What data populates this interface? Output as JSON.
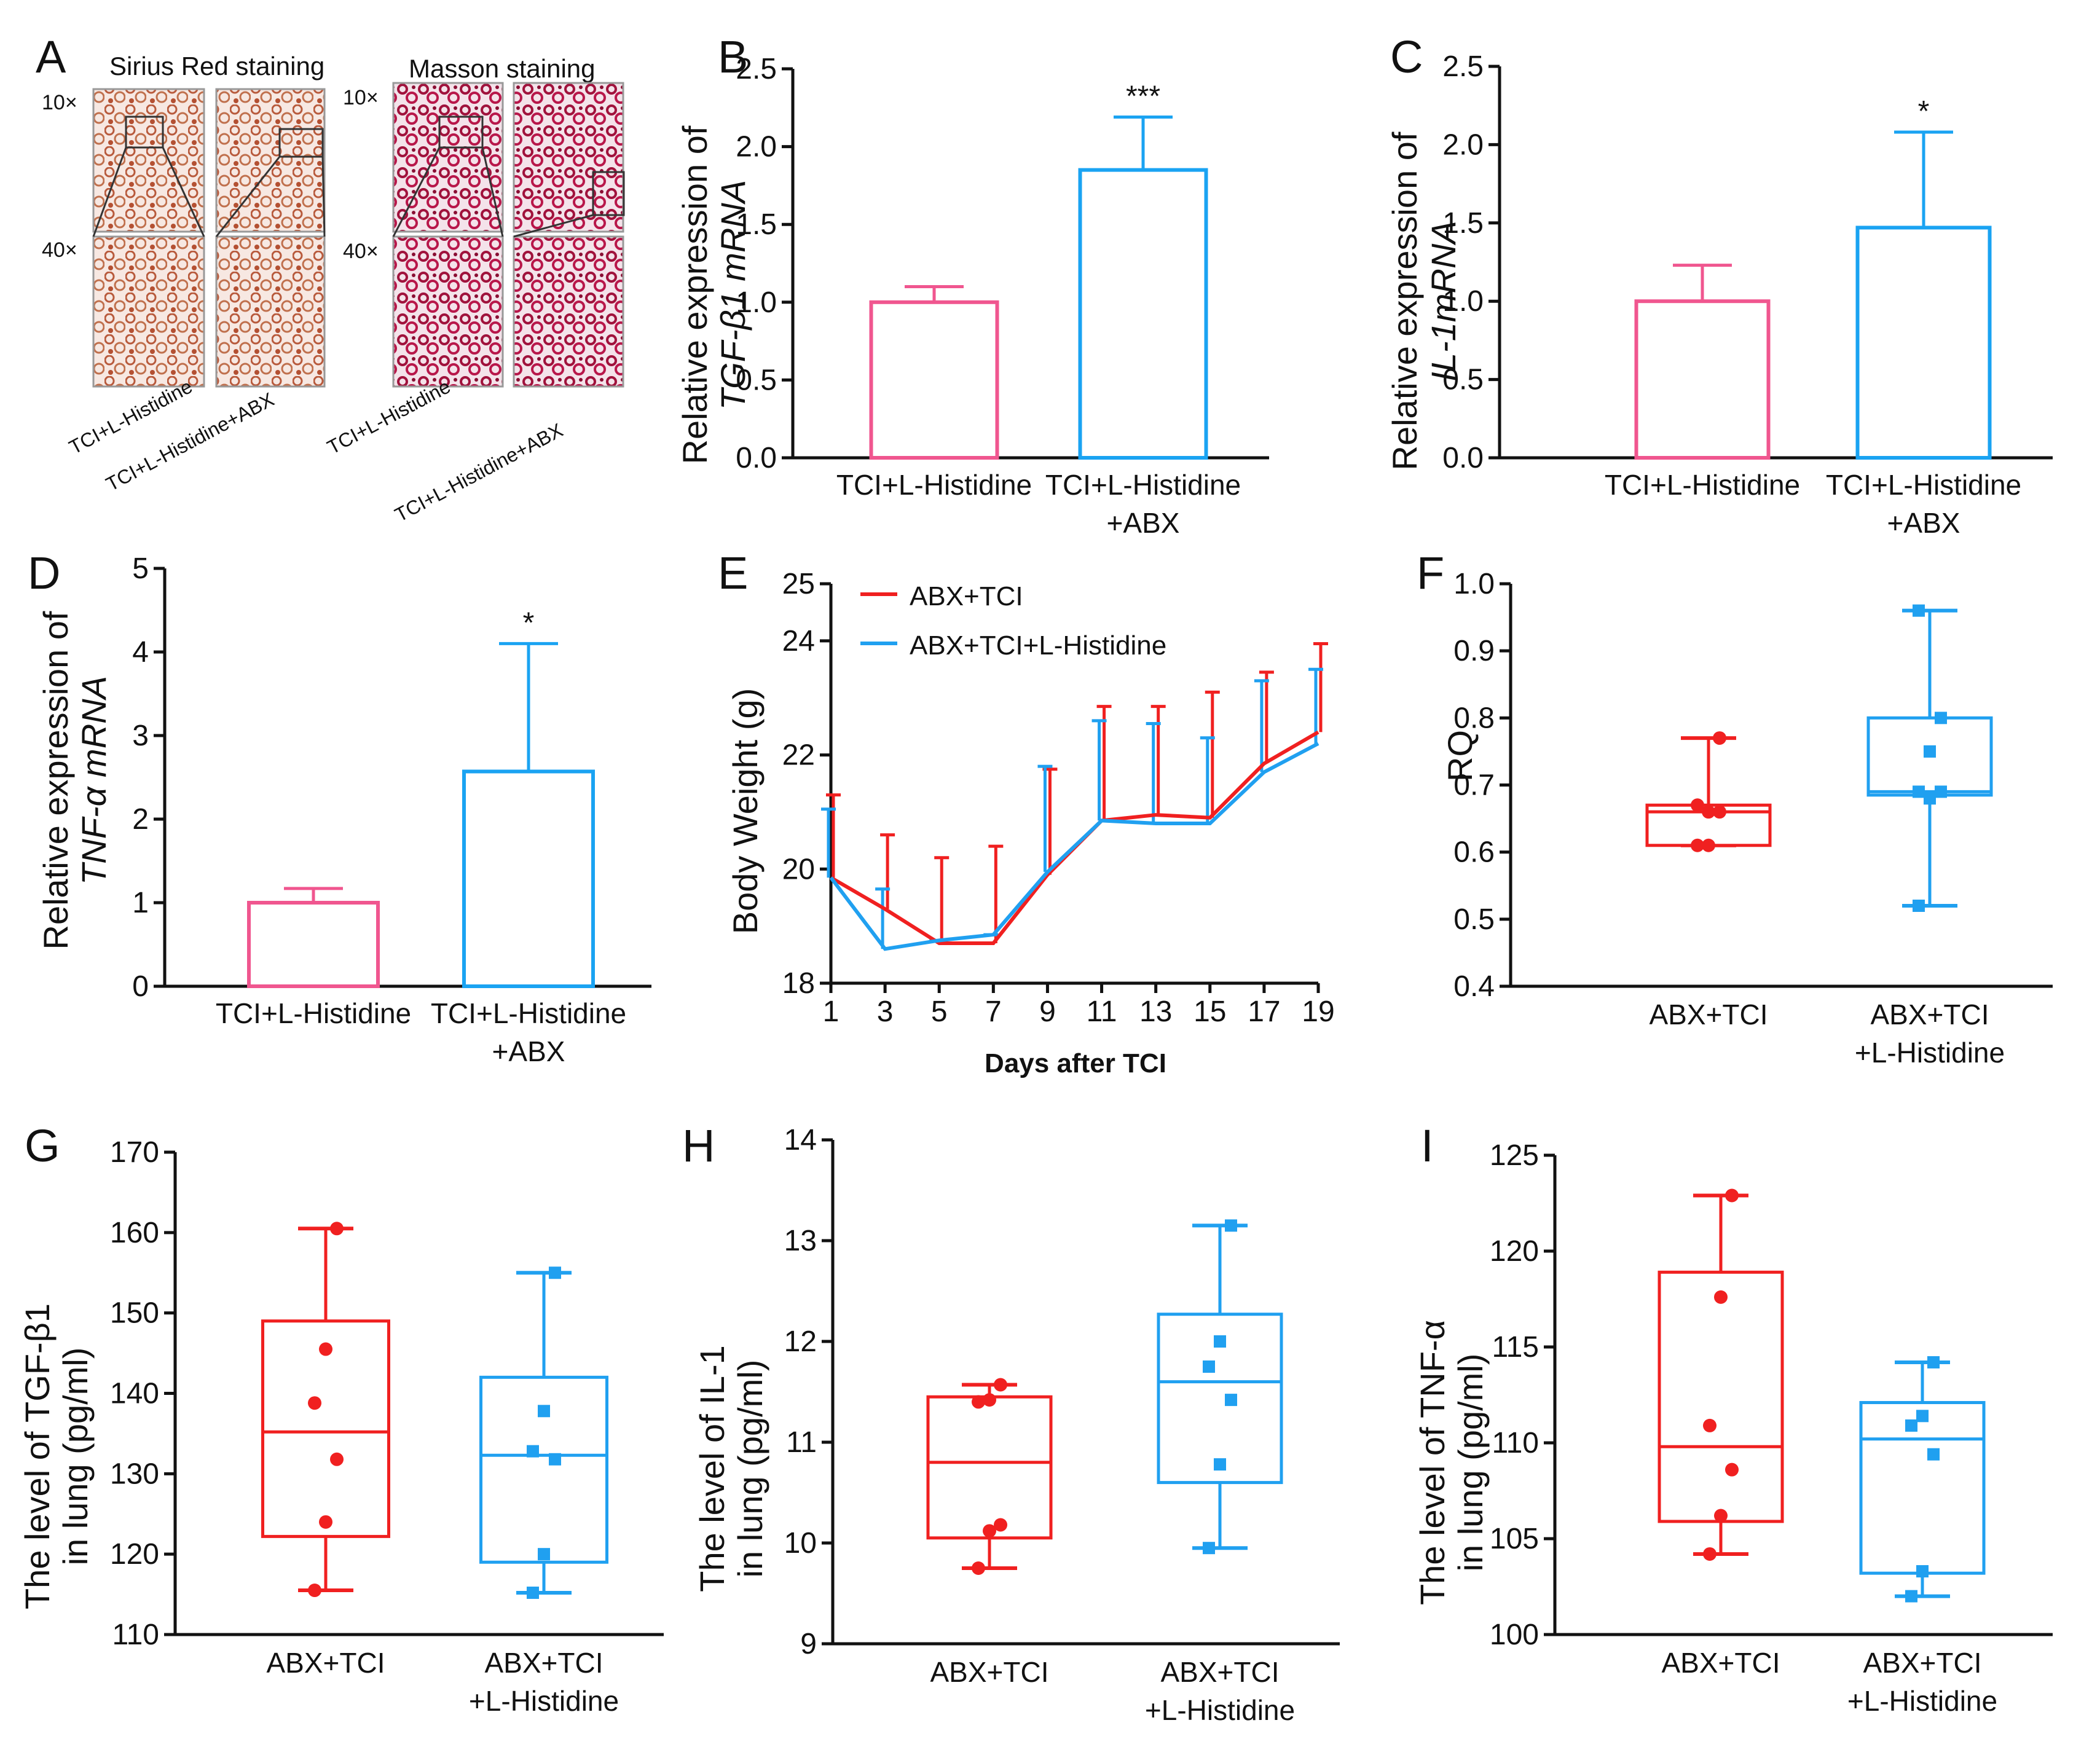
{
  "colors": {
    "pink": "#F0568F",
    "blue": "#1AA3F2",
    "red": "#F02020",
    "blue2": "#20A0F0"
  },
  "panel_a": {
    "label": "A",
    "sirius_title": "Sirius Red staining",
    "masson_title": "Masson staining",
    "mag10": "10×",
    "mag40": "40×",
    "group1": "TCI+L-Histidine",
    "group2": "TCI+L-Histidine+ABX"
  },
  "chart_data": [
    {
      "panel": "B",
      "type": "bar",
      "categories": [
        "TCI+L-Histidine",
        "TCI+L-Histidine"
      ],
      "categories_line2": [
        "",
        "+ABX"
      ],
      "values": [
        1.0,
        1.85
      ],
      "errors": [
        0.1,
        0.34
      ],
      "sig": [
        "",
        "***"
      ],
      "ylabel_line1": "Relative expression of",
      "ylabel_line2": "TGF-β1 mRNA",
      "ylim": [
        0,
        2.5
      ],
      "ticks": [
        "0.0",
        "0.5",
        "1.0",
        "1.5",
        "2.0",
        "2.5"
      ]
    },
    {
      "panel": "C",
      "type": "bar",
      "categories": [
        "TCI+L-Histidine",
        "TCI+L-Histidine"
      ],
      "categories_line2": [
        "",
        "+ABX"
      ],
      "values": [
        1.0,
        1.47
      ],
      "errors": [
        0.23,
        0.61
      ],
      "sig": [
        "",
        "*"
      ],
      "ylabel_line1": "Relative expression of",
      "ylabel_line2": "IL-1mRNA",
      "ylim": [
        0,
        2.5
      ],
      "ticks": [
        "0.0",
        "0.5",
        "1.0",
        "1.5",
        "2.0",
        "2.5"
      ]
    },
    {
      "panel": "D",
      "type": "bar",
      "categories": [
        "TCI+L-Histidine",
        "TCI+L-Histidine"
      ],
      "categories_line2": [
        "",
        "+ABX"
      ],
      "values": [
        1.0,
        2.57
      ],
      "errors": [
        0.17,
        1.53
      ],
      "sig": [
        "",
        "*"
      ],
      "ylabel_line1": "Relative expression of",
      "ylabel_line2": "TNF-α mRNA",
      "ylim": [
        0,
        5
      ],
      "ticks": [
        "0",
        "1",
        "2",
        "3",
        "4",
        "5"
      ]
    },
    {
      "panel": "E",
      "type": "line",
      "title": "",
      "xlabel": "Days after TCI",
      "ylabel": "Body Weight (g)",
      "x": [
        1,
        3,
        5,
        7,
        9,
        11,
        13,
        15,
        17,
        19
      ],
      "xlim": [
        1,
        19
      ],
      "ylim": [
        18,
        25
      ],
      "xticks": [
        "1",
        "3",
        "5",
        "7",
        "9",
        "11",
        "13",
        "15",
        "17",
        "19"
      ],
      "yticks": [
        "18",
        "20",
        "22",
        "24"
      ],
      "extra_ytick": "25",
      "series": [
        {
          "name": "ABX+TCI",
          "values": [
            19.85,
            19.3,
            18.7,
            18.7,
            19.9,
            20.85,
            20.95,
            20.9,
            21.85,
            22.4
          ],
          "upper": [
            21.3,
            20.6,
            20.2,
            20.4,
            21.75,
            22.85,
            22.85,
            23.1,
            23.45,
            23.95
          ]
        },
        {
          "name": "ABX+TCI+L-Histidine",
          "values": [
            19.85,
            18.6,
            18.75,
            18.85,
            19.95,
            20.85,
            20.8,
            20.8,
            21.7,
            22.2
          ],
          "upper": [
            21.05,
            19.65,
            18.75,
            18.85,
            21.8,
            22.6,
            22.55,
            22.3,
            23.3,
            23.5
          ]
        }
      ]
    },
    {
      "panel": "F",
      "type": "box",
      "ylabel": "RQ",
      "ylim": [
        0.4,
        1.0
      ],
      "ticks": [
        "0.4",
        "0.5",
        "0.6",
        "0.7",
        "0.8",
        "0.9",
        "1.0"
      ],
      "categories": [
        "ABX+TCI",
        "ABX+TCI"
      ],
      "categories_line2": [
        "",
        "+L-Histidine"
      ],
      "boxes": [
        {
          "min": 0.61,
          "q1": 0.61,
          "median": 0.66,
          "q3": 0.67,
          "max": 0.77,
          "points": [
            0.61,
            0.61,
            0.66,
            0.67,
            0.66,
            0.77
          ]
        },
        {
          "min": 0.52,
          "q1": 0.685,
          "median": 0.69,
          "q3": 0.8,
          "max": 0.96,
          "points": [
            0.52,
            0.68,
            0.69,
            0.69,
            0.75,
            0.8,
            0.96
          ]
        }
      ]
    },
    {
      "panel": "G",
      "type": "box",
      "ylabel_line1": "The level of TGF-β1",
      "ylabel_line2": "in lung (pg/ml)",
      "ylim": [
        110,
        170
      ],
      "ticks": [
        "110",
        "120",
        "130",
        "140",
        "150",
        "160",
        "170"
      ],
      "categories": [
        "ABX+TCI",
        "ABX+TCI"
      ],
      "categories_line2": [
        "",
        "+L-Histidine"
      ],
      "boxes": [
        {
          "min": 115.5,
          "q1": 122.2,
          "median": 135.2,
          "q3": 149,
          "max": 160.5,
          "points": [
            115.5,
            124,
            131.8,
            138.8,
            145.5,
            160.5
          ]
        },
        {
          "min": 115.2,
          "q1": 119,
          "median": 132.3,
          "q3": 142,
          "max": 155,
          "points": [
            115.2,
            120,
            131.8,
            132.8,
            137.8,
            155
          ]
        }
      ]
    },
    {
      "panel": "H",
      "type": "box",
      "ylabel_line1": "The level of IL-1",
      "ylabel_line2": "in lung (pg/ml)",
      "ylim": [
        9,
        14
      ],
      "ticks": [
        "9",
        "10",
        "11",
        "12",
        "13",
        "14"
      ],
      "categories": [
        "ABX+TCI",
        "ABX+TCI"
      ],
      "categories_line2": [
        "",
        "+L-Histidine"
      ],
      "boxes": [
        {
          "min": 9.75,
          "q1": 10.05,
          "median": 10.8,
          "q3": 11.45,
          "max": 11.57,
          "points": [
            9.75,
            10.12,
            10.18,
            11.4,
            11.42,
            11.57
          ]
        },
        {
          "min": 9.95,
          "q1": 10.6,
          "median": 11.6,
          "q3": 12.27,
          "max": 13.15,
          "points": [
            9.95,
            10.78,
            11.42,
            11.75,
            12.0,
            13.15
          ]
        }
      ]
    },
    {
      "panel": "I",
      "type": "box",
      "ylabel_line1": "The level of TNF-α",
      "ylabel_line2": "in lung (pg/ml)",
      "ylim": [
        100,
        125
      ],
      "ticks": [
        "100",
        "105",
        "110",
        "115",
        "120",
        "125"
      ],
      "categories": [
        "ABX+TCI",
        "ABX+TCI"
      ],
      "categories_line2": [
        "",
        "+L-Histidine"
      ],
      "boxes": [
        {
          "min": 104.2,
          "q1": 105.9,
          "median": 109.8,
          "q3": 118.9,
          "max": 122.9,
          "points": [
            104.2,
            106.2,
            108.6,
            110.9,
            117.6,
            122.9
          ]
        },
        {
          "min": 102,
          "q1": 103.2,
          "median": 110.2,
          "q3": 112.1,
          "max": 114.2,
          "points": [
            102,
            103.3,
            109.4,
            110.9,
            111.4,
            114.2
          ]
        }
      ]
    }
  ]
}
